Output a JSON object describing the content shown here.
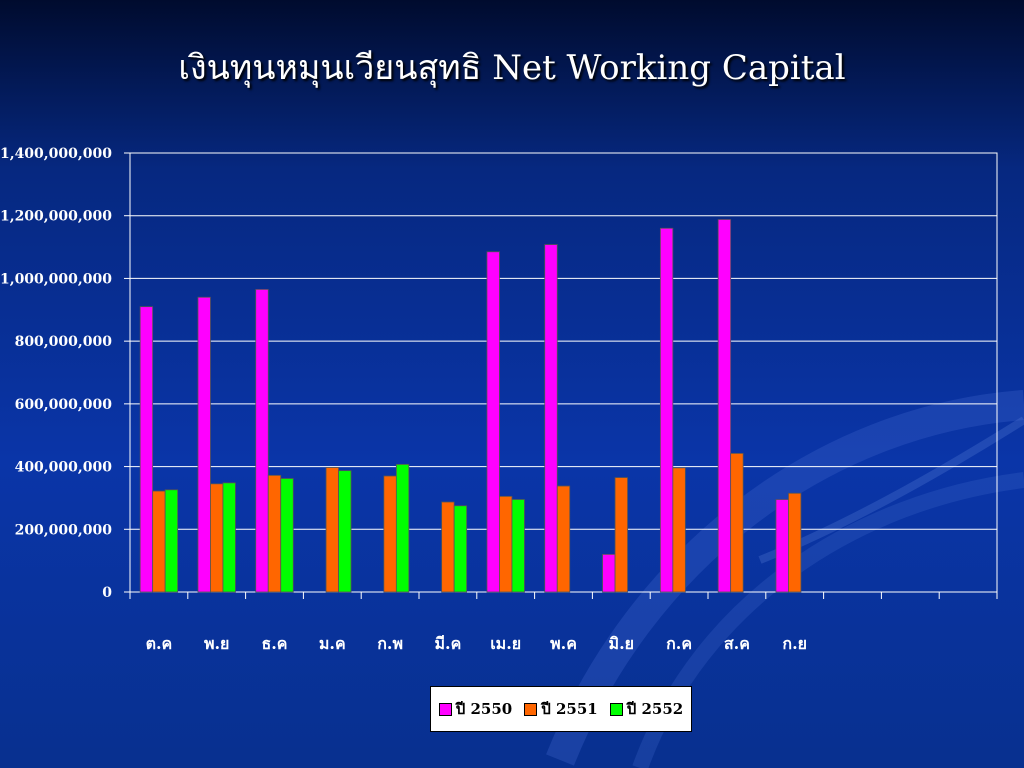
{
  "title": "เงินทุนหมุนเวียนสุทธิ Net Working Capital",
  "chart_data": {
    "type": "bar",
    "categories": [
      "ต.ค",
      "พ.ย",
      "ธ.ค",
      "ม.ค",
      "ก.พ",
      "มี.ค",
      "เม.ย",
      "พ.ค",
      "มิ.ย",
      "ก.ค",
      "ส.ค",
      "ก.ย",
      "",
      "",
      ""
    ],
    "series": [
      {
        "name": "ปี 2550",
        "color": "#ff00ff",
        "values": [
          910000000,
          940000000,
          965000000,
          null,
          null,
          null,
          1085000000,
          1108000000,
          120000000,
          1160000000,
          1188000000,
          295000000,
          null,
          null,
          null
        ]
      },
      {
        "name": "ปี 2551",
        "color": "#ff6600",
        "values": [
          322000000,
          345000000,
          372000000,
          397000000,
          370000000,
          287000000,
          305000000,
          338000000,
          365000000,
          396000000,
          442000000,
          315000000,
          null,
          null,
          null
        ]
      },
      {
        "name": "ปี 2552",
        "color": "#00ff00",
        "values": [
          326000000,
          348000000,
          362000000,
          387000000,
          407000000,
          275000000,
          295000000,
          null,
          null,
          null,
          null,
          null,
          null,
          null,
          null
        ]
      }
    ],
    "ylim": [
      0,
      1400000000
    ],
    "yticks": [
      0,
      200000000,
      400000000,
      600000000,
      800000000,
      1000000000,
      1200000000,
      1400000000
    ],
    "ytick_labels": [
      "0",
      "200,000,000",
      "400,000,000",
      "600,000,000",
      "800,000,000",
      "1,000,000,000",
      "1,200,000,000",
      "1,400,000,000"
    ],
    "grid": true,
    "legend": "bottom"
  }
}
